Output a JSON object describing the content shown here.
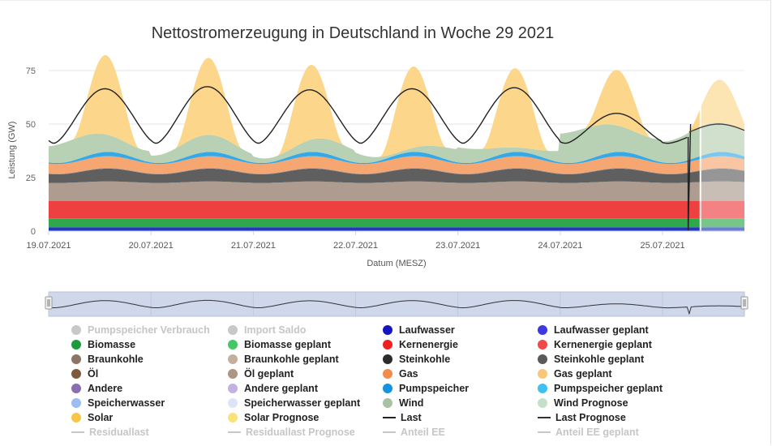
{
  "chart_data": {
    "type": "area",
    "title": "Nettostromerzeugung in Deutschland in Woche 29 2021",
    "xlabel": "Datum (MESZ)",
    "ylabel": "Leistung (GW)",
    "ylim": [
      0,
      75
    ],
    "yticks": [
      0,
      25,
      50,
      75
    ],
    "xticks": [
      "19.07.2021",
      "20.07.2021",
      "21.07.2021",
      "22.07.2021",
      "23.07.2021",
      "24.07.2021",
      "25.07.2021"
    ],
    "x_unit": "days since 19.07.2021 00:00",
    "x_range": [
      0,
      6.8
    ],
    "forecast_start_day": 6.37,
    "grid": true,
    "legend_position": "bottom",
    "stack_series": [
      {
        "name": "Laufwasser",
        "color": "#2235c8",
        "base": 1.8,
        "amp": 0.0
      },
      {
        "name": "Biomasse",
        "color": "#2ea84a",
        "base": 4.2,
        "amp": 0.0
      },
      {
        "name": "Kernenergie",
        "color": "#ee4040",
        "base": 8.0,
        "amp": 0.0
      },
      {
        "name": "Braunkohle",
        "color": "#ad9c8f",
        "base": 8.5,
        "amp": 0.7
      },
      {
        "name": "Steinkohle",
        "color": "#5f5f5f",
        "base": 4.0,
        "amp": 2.0
      },
      {
        "name": "Öl",
        "color": "#a89080",
        "base": 0.3,
        "amp": 0.0
      },
      {
        "name": "Gas",
        "color": "#f6a670",
        "base": 4.5,
        "amp": 1.0
      },
      {
        "name": "Pumpspeicher",
        "color": "#35a9e8",
        "base": 0.5,
        "amp": 1.5
      },
      {
        "name": "Wind",
        "color": "#b8d0b3",
        "base": 5.0,
        "amp": 0.0
      },
      {
        "name": "Solar",
        "color": "#fcd68a",
        "base": 0.0,
        "amp": 36.0
      }
    ],
    "daily_peaks": {
      "solar_GW": [
        37,
        36,
        35,
        38,
        37,
        26,
        20
      ],
      "wind_GW": [
        6,
        4,
        3,
        2,
        3,
        11,
        10
      ],
      "last_GW": [
        66.5,
        67.5,
        66,
        66.5,
        67,
        55,
        48
      ]
    },
    "line_series": [
      {
        "name": "Last",
        "color": "#222222",
        "night_GW": 41,
        "note": "daily load curve"
      },
      {
        "name": "Last Prognose",
        "color": "#444444"
      }
    ],
    "forecast_stack_colors": [
      "#2235c8",
      "#6cd98a",
      "#f56060",
      "#c6b4a4",
      "#6f6f6f",
      "#fbdd9b",
      "#c5e0c0"
    ]
  },
  "navigator": {
    "color_fill": "#cfd8ea",
    "line_color": "#333333"
  },
  "legend": [
    {
      "label": "Pumpspeicher Verbrauch",
      "color": "#c8c8c8",
      "shape": "dot",
      "hidden": true
    },
    {
      "label": "Import Saldo",
      "color": "#c8c8c8",
      "shape": "dot",
      "hidden": true
    },
    {
      "label": "Laufwasser",
      "color": "#1515c0",
      "shape": "dot",
      "hidden": false
    },
    {
      "label": "Laufwasser geplant",
      "color": "#3a3ae0",
      "shape": "dot",
      "hidden": false
    },
    {
      "label": "Biomasse",
      "color": "#1e9b3c",
      "shape": "dot",
      "hidden": false
    },
    {
      "label": "Biomasse geplant",
      "color": "#44c866",
      "shape": "dot",
      "hidden": false
    },
    {
      "label": "Kernenergie",
      "color": "#ee2020",
      "shape": "dot",
      "hidden": false
    },
    {
      "label": "Kernenergie geplant",
      "color": "#f04a4a",
      "shape": "dot",
      "hidden": false
    },
    {
      "label": "Braunkohle",
      "color": "#8c7565",
      "shape": "dot",
      "hidden": false
    },
    {
      "label": "Braunkohle geplant",
      "color": "#c4ae9d",
      "shape": "dot",
      "hidden": false
    },
    {
      "label": "Steinkohle",
      "color": "#2b2b2b",
      "shape": "dot",
      "hidden": false
    },
    {
      "label": "Steinkohle geplant",
      "color": "#5a5a5a",
      "shape": "dot",
      "hidden": false
    },
    {
      "label": "Öl",
      "color": "#7b5a3e",
      "shape": "dot",
      "hidden": false
    },
    {
      "label": "Öl geplant",
      "color": "#ad9483",
      "shape": "dot",
      "hidden": false
    },
    {
      "label": "Gas",
      "color": "#f28c4a",
      "shape": "dot",
      "hidden": false
    },
    {
      "label": "Gas geplant",
      "color": "#f8c77a",
      "shape": "dot",
      "hidden": false
    },
    {
      "label": "Andere",
      "color": "#8a6fb0",
      "shape": "dot",
      "hidden": false
    },
    {
      "label": "Andere geplant",
      "color": "#c3b2e0",
      "shape": "dot",
      "hidden": false
    },
    {
      "label": "Pumpspeicher",
      "color": "#1593e0",
      "shape": "dot",
      "hidden": false
    },
    {
      "label": "Pumpspeicher geplant",
      "color": "#3fc1f0",
      "shape": "dot",
      "hidden": false
    },
    {
      "label": "Speicherwasser",
      "color": "#9bbdf3",
      "shape": "dot",
      "hidden": false
    },
    {
      "label": "Speicherwasser geplant",
      "color": "#dfe3f7",
      "shape": "dot",
      "hidden": false
    },
    {
      "label": "Wind",
      "color": "#a7c3a2",
      "shape": "dot",
      "hidden": false
    },
    {
      "label": "Wind Prognose",
      "color": "#c5e0c9",
      "shape": "dot",
      "hidden": false
    },
    {
      "label": "Solar",
      "color": "#f9c547",
      "shape": "dot",
      "hidden": false
    },
    {
      "label": "Solar Prognose",
      "color": "#fae27a",
      "shape": "dot",
      "hidden": false
    },
    {
      "label": "Last",
      "color": "#222222",
      "shape": "line",
      "hidden": false
    },
    {
      "label": "Last Prognose",
      "color": "#333333",
      "shape": "line",
      "hidden": false
    },
    {
      "label": "Residuallast",
      "color": "#c8c8c8",
      "shape": "line",
      "hidden": true
    },
    {
      "label": "Residuallast Prognose",
      "color": "#c8c8c8",
      "shape": "line",
      "hidden": true
    },
    {
      "label": "Anteil EE",
      "color": "#c8c8c8",
      "shape": "line",
      "hidden": true
    },
    {
      "label": "Anteil EE geplant",
      "color": "#c8c8c8",
      "shape": "line",
      "hidden": true
    }
  ]
}
